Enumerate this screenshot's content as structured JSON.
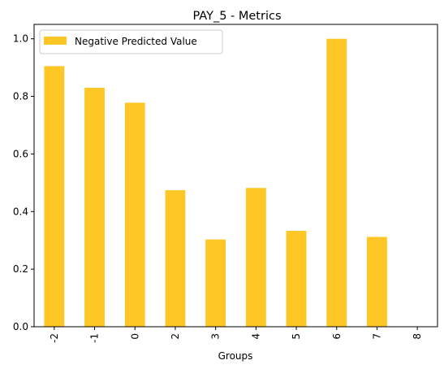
{
  "chart_data": {
    "type": "bar",
    "title": "PAY_5 - Metrics",
    "xlabel": "Groups",
    "ylabel": "",
    "categories": [
      "-2",
      "-1",
      "0",
      "2",
      "3",
      "4",
      "5",
      "6",
      "7",
      "8"
    ],
    "series": [
      {
        "name": "Negative Predicted Value",
        "color": "#ffc726",
        "values": [
          0.905,
          0.83,
          0.778,
          0.474,
          0.303,
          0.482,
          0.333,
          1.0,
          0.312,
          0.0
        ]
      }
    ],
    "ylim": [
      0,
      1.05
    ],
    "yticks": [
      "0.0",
      "0.2",
      "0.4",
      "0.6",
      "0.8",
      "1.0"
    ],
    "grid": false,
    "legend_position": "top-left"
  }
}
